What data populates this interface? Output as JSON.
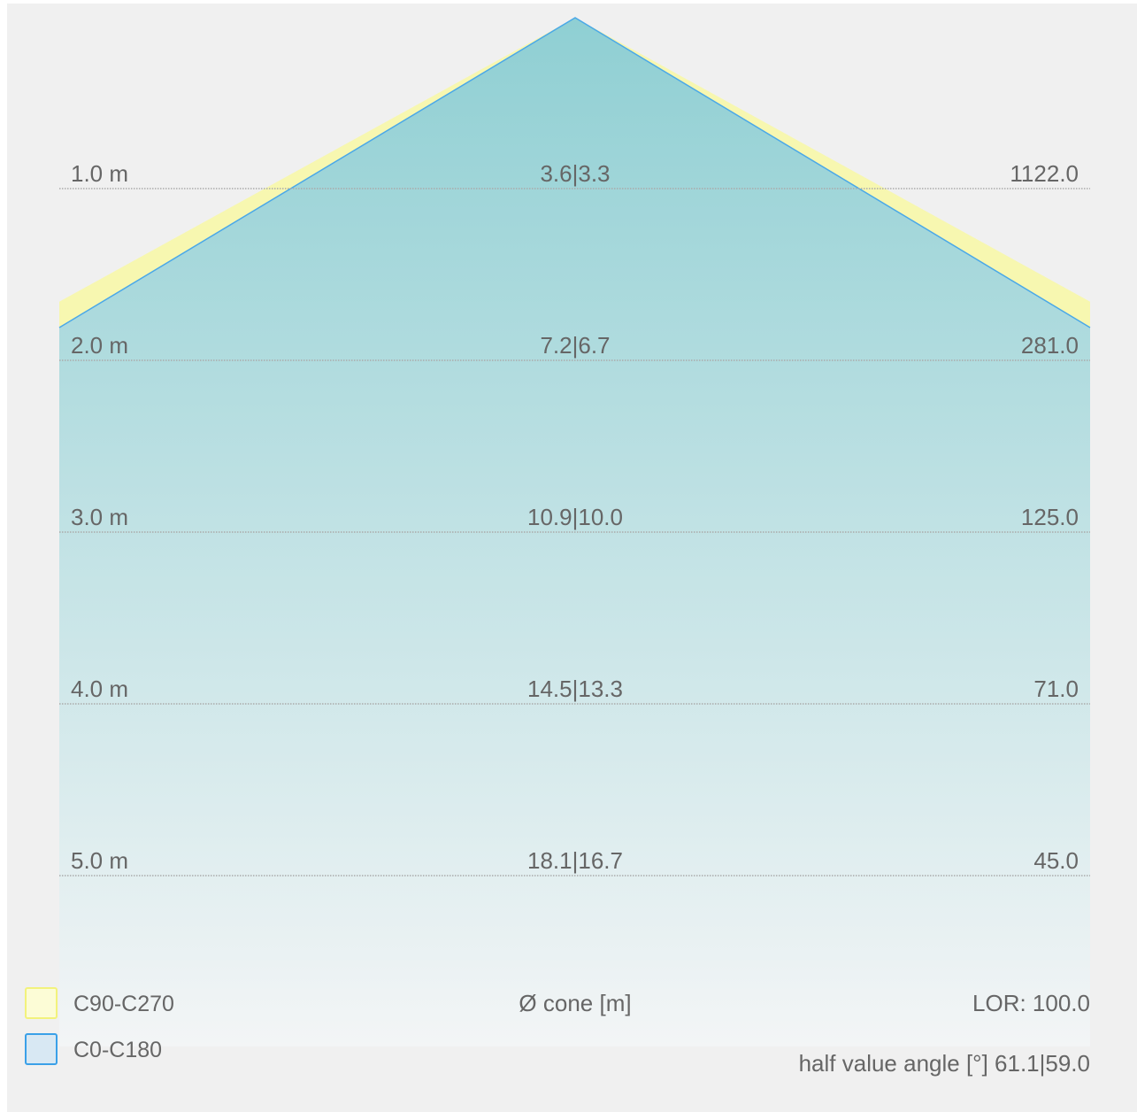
{
  "chart_data": {
    "type": "area",
    "title": "",
    "distance_unit": "m",
    "series": [
      {
        "name": "C90-C270",
        "cone_diameter_m": [
          3.6,
          7.2,
          10.9,
          14.5,
          18.1
        ],
        "color": "#f5f5a8"
      },
      {
        "name": "C0-C180",
        "cone_diameter_m": [
          3.3,
          6.7,
          10.0,
          13.3,
          16.7
        ],
        "color": "#4aa8e8"
      }
    ],
    "rows": [
      {
        "distance": "1.0 m",
        "diameter": "3.6|3.3",
        "illuminance": "1122.0"
      },
      {
        "distance": "2.0 m",
        "diameter": "7.2|6.7",
        "illuminance": "281.0"
      },
      {
        "distance": "3.0 m",
        "diameter": "10.9|10.0",
        "illuminance": "125.0"
      },
      {
        "distance": "4.0 m",
        "diameter": "14.5|13.3",
        "illuminance": "71.0"
      },
      {
        "distance": "5.0 m",
        "diameter": "18.1|16.7",
        "illuminance": "45.0"
      }
    ],
    "half_value_angle_deg": [
      61.1,
      59.0
    ],
    "lor": 100.0
  },
  "legend": {
    "items": [
      {
        "label": "C90-C270",
        "fill": "#fcfcd6",
        "stroke": "#f2f27c"
      },
      {
        "label": "C0-C180",
        "fill": "#d8e8f3",
        "stroke": "#3aa0e8"
      }
    ]
  },
  "labels": {
    "cone_axis": "Ø cone [m]",
    "lor": "LOR: 100.0",
    "half_value_angle": "half value angle [°] 61.1|59.0"
  },
  "colors": {
    "background": "#f0f0f0",
    "cone_top": "#8fcfd3",
    "cone_bottom": "#f3f5f6",
    "outer_cone": "#f7f7b0",
    "line_c0": "#4aa8e8",
    "gridline": "#aaaaaa",
    "text": "#666666"
  }
}
